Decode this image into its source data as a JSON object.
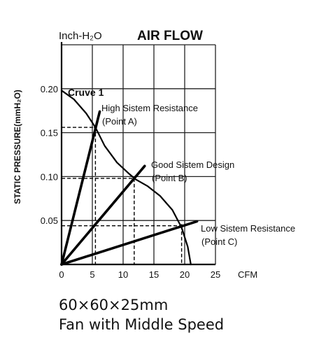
{
  "chart_data": {
    "type": "line",
    "title": "AIR FLOW",
    "unit_label": "Inch-H₂O",
    "ylabel": "STATIC PRESSURE(mmH₂O)",
    "xunit": "CFM",
    "xlim": [
      0,
      25
    ],
    "ylim": [
      0,
      0.25
    ],
    "xticks": [
      "0",
      "5",
      "10",
      "15",
      "20",
      "25"
    ],
    "yticks": [
      {
        "v": 0.05,
        "label": "0.05"
      },
      {
        "v": 0.1,
        "label": "0.10"
      },
      {
        "v": 0.15,
        "label": "0.15"
      },
      {
        "v": 0.2,
        "label": "0.20"
      }
    ],
    "grid": true,
    "series": [
      {
        "name": "Cruve 1",
        "role": "fan-curve",
        "points": [
          [
            0,
            0.198
          ],
          [
            2,
            0.188
          ],
          [
            4,
            0.172
          ],
          [
            5.5,
            0.156
          ],
          [
            7,
            0.135
          ],
          [
            9,
            0.116
          ],
          [
            11,
            0.103
          ],
          [
            12,
            0.097
          ],
          [
            14,
            0.089
          ],
          [
            16,
            0.078
          ],
          [
            18,
            0.062
          ],
          [
            19.5,
            0.042
          ],
          [
            20.5,
            0.02
          ],
          [
            21,
            0.0
          ]
        ]
      },
      {
        "name": "High Sistem Resistance (Point A)",
        "role": "system-line",
        "points": [
          [
            0,
            0.0
          ],
          [
            6.2,
            0.174
          ]
        ]
      },
      {
        "name": "Good Sistem Design (Point B)",
        "role": "system-line",
        "points": [
          [
            0,
            0.0
          ],
          [
            13.5,
            0.112
          ]
        ]
      },
      {
        "name": "Low Sistem Resistance (Point C)",
        "role": "system-line",
        "points": [
          [
            0,
            0.0
          ],
          [
            22,
            0.049
          ]
        ]
      }
    ],
    "operating_points": [
      {
        "name": "A",
        "x": 5.5,
        "y": 0.156
      },
      {
        "name": "B",
        "x": 11.8,
        "y": 0.098
      },
      {
        "name": "C",
        "x": 19.5,
        "y": 0.044
      }
    ],
    "annotations": {
      "curve_label": "Cruve 1",
      "point_a": [
        "High Sistem Resistance",
        "(Point A)"
      ],
      "point_b": [
        "Good Sistem Design",
        "(Point B)"
      ],
      "point_c": [
        "Low Sistem Resistance",
        "(Point C)"
      ]
    }
  },
  "captions": {
    "line1": "60×60×25mm",
    "line2": "Fan with Middle Speed"
  }
}
